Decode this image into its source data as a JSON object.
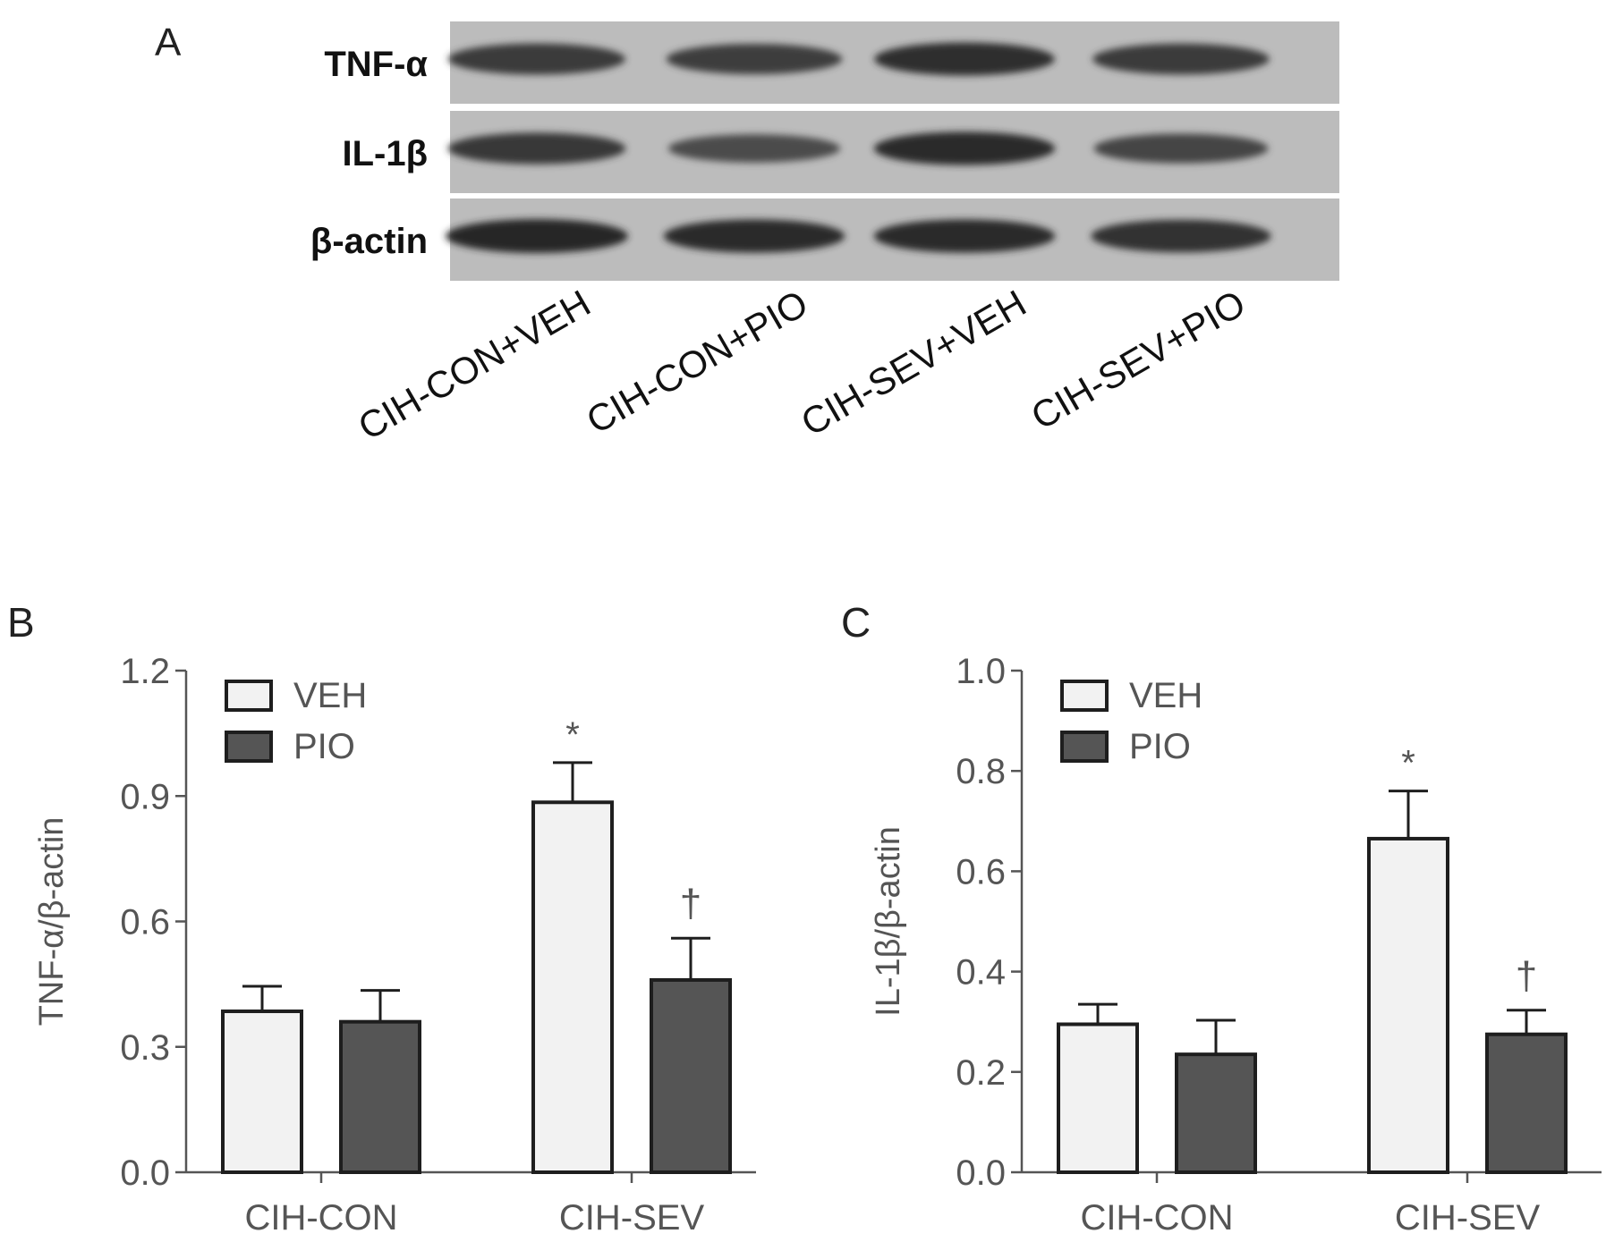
{
  "panels": {
    "a": {
      "letter": "A"
    },
    "b": {
      "letter": "B"
    },
    "c": {
      "letter": "C"
    }
  },
  "blot": {
    "rows": [
      {
        "label": "TNF-α",
        "intensities": [
          0.78,
          0.72,
          0.92,
          0.76
        ]
      },
      {
        "label": "IL-1β",
        "intensities": [
          0.8,
          0.55,
          0.95,
          0.65
        ]
      },
      {
        "label": "β-actin",
        "intensities": [
          1.0,
          0.95,
          0.95,
          0.9
        ]
      }
    ],
    "lanes": [
      "CIH-CON+VEH",
      "CIH-CON+PIO",
      "CIH-SEV+VEH",
      "CIH-SEV+PIO"
    ]
  },
  "colors": {
    "veh": "#f2f2f2",
    "pio": "#555555",
    "outline": "#1e1e1e",
    "axis": "#555555",
    "text": "#555555"
  },
  "chart_data": [
    {
      "type": "bar",
      "ylabel": "TNF-α/β-actin",
      "ylim": [
        0,
        1.2
      ],
      "yticks": [
        "0.0",
        "0.3",
        "0.6",
        "0.9",
        "1.2"
      ],
      "categories": [
        "CIH-CON",
        "CIH-SEV"
      ],
      "legend_position": "top-left",
      "series": [
        {
          "name": "VEH",
          "values": [
            0.385,
            0.885
          ],
          "errors": [
            0.06,
            0.095
          ],
          "markers": [
            "",
            "*"
          ]
        },
        {
          "name": "PIO",
          "values": [
            0.36,
            0.46
          ],
          "errors": [
            0.075,
            0.1
          ],
          "markers": [
            "",
            "†"
          ]
        }
      ]
    },
    {
      "type": "bar",
      "ylabel": "IL-1β/β-actin",
      "ylim": [
        0,
        1.0
      ],
      "yticks": [
        "0.0",
        "0.2",
        "0.4",
        "0.6",
        "0.8",
        "1.0"
      ],
      "categories": [
        "CIH-CON",
        "CIH-SEV"
      ],
      "legend_position": "top-left",
      "series": [
        {
          "name": "VEH",
          "values": [
            0.295,
            0.665
          ],
          "errors": [
            0.04,
            0.095
          ],
          "markers": [
            "",
            "*"
          ]
        },
        {
          "name": "PIO",
          "values": [
            0.235,
            0.275
          ],
          "errors": [
            0.068,
            0.048
          ],
          "markers": [
            "",
            "†"
          ]
        }
      ]
    }
  ]
}
